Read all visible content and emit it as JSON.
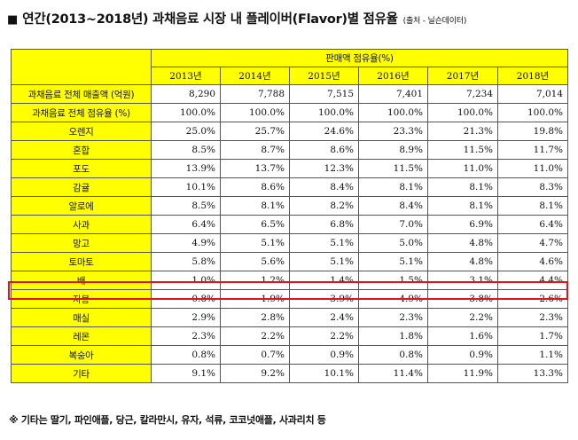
{
  "title": {
    "mark": "■",
    "text": "연간(2013~2018년) 과채음료 시장 내 플레이버(Flavor)별 점유율",
    "source": "(출처 - 닐슨데이터)"
  },
  "table": {
    "group_header": "판매액 점유율(%)",
    "years": [
      "2013년",
      "2014년",
      "2015년",
      "2016년",
      "2017년",
      "2018년"
    ],
    "rows": [
      {
        "label": "과채음료 전체 매출액 (억원)",
        "values": [
          "8,290",
          "7,788",
          "7,515",
          "7,401",
          "7,234",
          "7,014"
        ]
      },
      {
        "label": "과채음료 전체 점유율 (%)",
        "values": [
          "100.0%",
          "100.0%",
          "100.0%",
          "100.0%",
          "100.0%",
          "100.0%"
        ]
      },
      {
        "label": "오렌지",
        "values": [
          "25.0%",
          "25.7%",
          "24.6%",
          "23.3%",
          "21.3%",
          "19.8%"
        ]
      },
      {
        "label": "혼합",
        "values": [
          "8.5%",
          "8.7%",
          "8.6%",
          "8.9%",
          "11.5%",
          "11.7%"
        ]
      },
      {
        "label": "포도",
        "values": [
          "13.9%",
          "13.7%",
          "12.3%",
          "11.5%",
          "11.0%",
          "11.0%"
        ]
      },
      {
        "label": "감귤",
        "values": [
          "10.1%",
          "8.6%",
          "8.4%",
          "8.1%",
          "8.1%",
          "8.3%"
        ]
      },
      {
        "label": "알로에",
        "values": [
          "8.5%",
          "8.1%",
          "8.2%",
          "8.4%",
          "8.1%",
          "8.1%"
        ]
      },
      {
        "label": "사과",
        "values": [
          "6.4%",
          "6.5%",
          "6.8%",
          "7.0%",
          "6.9%",
          "6.4%"
        ]
      },
      {
        "label": "망고",
        "values": [
          "4.9%",
          "5.1%",
          "5.1%",
          "5.0%",
          "4.8%",
          "4.7%"
        ]
      },
      {
        "label": "토마토",
        "values": [
          "5.8%",
          "5.6%",
          "5.1%",
          "5.1%",
          "4.8%",
          "4.6%"
        ]
      },
      {
        "label": "배",
        "values": [
          "1.0%",
          "1.2%",
          "1.4%",
          "1.5%",
          "3.1%",
          "4.4%"
        ]
      },
      {
        "label": "자몽",
        "values": [
          "0.8%",
          "1.9%",
          "3.9%",
          "4.9%",
          "3.8%",
          "2.6%"
        ]
      },
      {
        "label": "매실",
        "values": [
          "2.9%",
          "2.8%",
          "2.4%",
          "2.3%",
          "2.2%",
          "2.3%"
        ]
      },
      {
        "label": "레몬",
        "values": [
          "2.3%",
          "2.2%",
          "2.2%",
          "1.8%",
          "1.6%",
          "1.7%"
        ]
      },
      {
        "label": "복숭아",
        "values": [
          "0.8%",
          "0.7%",
          "0.9%",
          "0.8%",
          "0.9%",
          "1.1%"
        ]
      },
      {
        "label": "기타",
        "values": [
          "9.1%",
          "9.2%",
          "10.1%",
          "11.4%",
          "11.9%",
          "13.3%"
        ]
      }
    ],
    "highlighted_row": "배",
    "colors": {
      "header_fill": "#ffff00",
      "highlight_border": "#e0141a",
      "grid_line": "#555555"
    }
  },
  "footnote": "※ 기타는 딸기, 파인애플, 당근, 칼라만시, 유자, 석류, 코코넛애플, 사과리치 등"
}
